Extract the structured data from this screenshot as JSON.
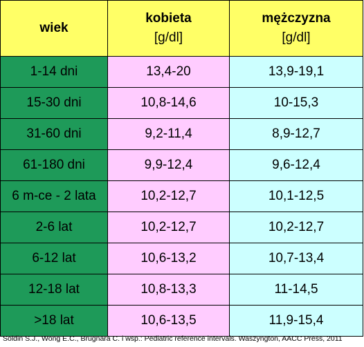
{
  "table": {
    "headers": {
      "age": "wiek",
      "female": "kobieta",
      "female_unit": "[g/dl]",
      "male": "mężczyzna",
      "male_unit": "[g/dl]"
    },
    "rows": [
      {
        "age": "1-14 dni",
        "female": "13,4-20",
        "male": "13,9-19,1"
      },
      {
        "age": "15-30 dni",
        "female": "10,8-14,6",
        "male": "10-15,3"
      },
      {
        "age": "31-60 dni",
        "female": "9,2-11,4",
        "male": "8,9-12,7"
      },
      {
        "age": "61-180 dni",
        "female": "9,9-12,4",
        "male": "9,6-12,4"
      },
      {
        "age": "6 m-ce - 2 lata",
        "female": "10,2-12,7",
        "male": "10,1-12,5"
      },
      {
        "age": "2-6 lat",
        "female": "10,2-12,7",
        "male": "10,2-12,7"
      },
      {
        "age": "6-12 lat",
        "female": "10,6-13,2",
        "male": "10,7-13,4"
      },
      {
        "age": "12-18 lat",
        "female": "10,8-13,3",
        "male": "11-14,5"
      },
      {
        "age": ">18 lat",
        "female": "10,6-13,5",
        "male": "11,9-15,4"
      }
    ]
  },
  "footer": {
    "citation": "Soldin S.J., Wong E.C., Brugnara C. i wsp.: Pediatric reference intervals. Waszyngton, AACC Press, 2011"
  },
  "colors": {
    "header": "#ffff66",
    "age_column": "#1e9a59",
    "female_column": "#ffccff",
    "male_column": "#ccffff"
  }
}
